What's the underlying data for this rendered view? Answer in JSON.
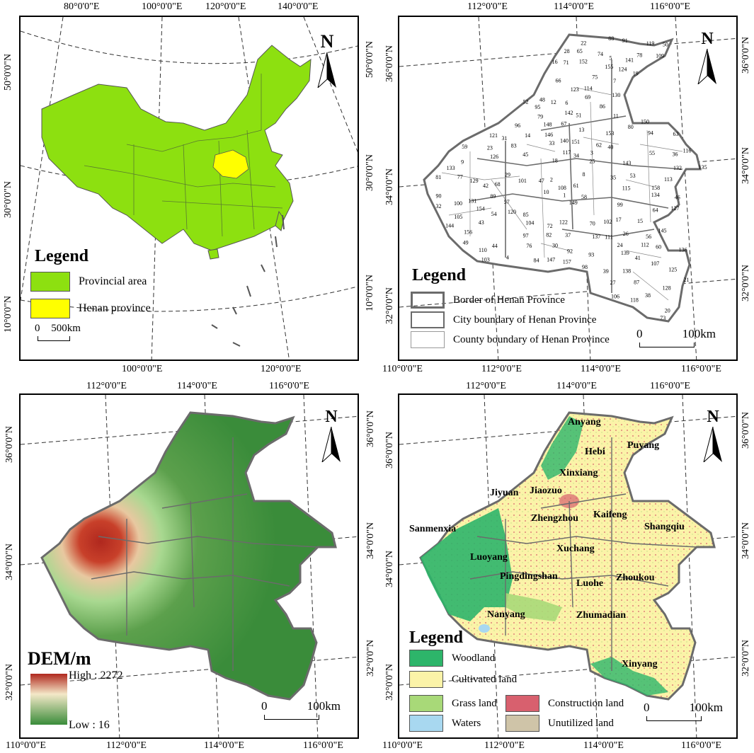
{
  "colors": {
    "province": "#8de010",
    "henan": "#ffff00",
    "woodland": "#2db56a",
    "cultivated": "#fbf3a8",
    "grass": "#a8d978",
    "construction": "#d8606e",
    "waters": "#a8d8f0",
    "unutilized": "#cfc4a8",
    "dem_high": "#b0281e",
    "dem_low": "#3a8c3a",
    "border": "#6b6b6b"
  },
  "panel1": {
    "top_coords": [
      "80°0'0\"E",
      "100°0'0\"E",
      "120°0'0\"E",
      "140°0'0\"E"
    ],
    "bottom_coords": [
      "100°0'0\"E",
      "120°0'0\"E"
    ],
    "left_coords": [
      "50°0'0\"N",
      "30°0'0\"N",
      "10°0'0\"N"
    ],
    "right_coords": [
      "50°0'0\"N",
      "30°0'0\"N",
      "10°0'0\"N"
    ],
    "north": "N",
    "legend": {
      "title": "Legend",
      "items": [
        "Provincial area",
        "Henan province"
      ]
    },
    "scale": {
      "zero": "0",
      "label": "500km"
    }
  },
  "panel2": {
    "top_coords": [
      "112°0'0\"E",
      "114°0'0\"E",
      "116°0'0\"E"
    ],
    "bottom_coords": [
      "110°0'0\"E",
      "112°0'0\"E",
      "114°0'0\"E",
      "116°0'0\"E"
    ],
    "left_coords": [
      "36°0'0\"N",
      "34°0'0\"N",
      "32°0'0\"N"
    ],
    "right_coords": [
      "36°0'0\"N",
      "34°0'0\"N",
      "32°0'0\"N"
    ],
    "north": "N",
    "legend": {
      "title": "Legend",
      "items": [
        "Border of Henan Province",
        "City boundary of Henan Province",
        "County boundary of Henan Province"
      ]
    },
    "scale": {
      "zero": "0",
      "label": "100km"
    },
    "county_numbers": [
      "1",
      "2",
      "3",
      "4",
      "5",
      "6",
      "7",
      "8",
      "9",
      "10",
      "11",
      "12",
      "13",
      "14",
      "15",
      "16",
      "17",
      "18",
      "19",
      "20",
      "21",
      "22",
      "23",
      "24",
      "25",
      "26",
      "27",
      "28",
      "29",
      "30",
      "31",
      "32",
      "33",
      "34",
      "35",
      "36",
      "37",
      "38",
      "39",
      "40",
      "41",
      "42",
      "43",
      "44",
      "45",
      "46",
      "47",
      "48",
      "49",
      "50",
      "51",
      "52",
      "53",
      "54",
      "55",
      "56",
      "57",
      "58",
      "59",
      "60",
      "61",
      "62",
      "63",
      "64",
      "65",
      "66",
      "67",
      "68",
      "69",
      "70",
      "71",
      "72",
      "73",
      "74",
      "75",
      "76",
      "77",
      "78",
      "79",
      "80",
      "81",
      "82",
      "83",
      "84",
      "85",
      "86",
      "87",
      "88",
      "89",
      "90",
      "91",
      "92",
      "93",
      "94",
      "95",
      "96",
      "97",
      "98",
      "99",
      "100",
      "101",
      "102",
      "103",
      "104",
      "105",
      "106",
      "107",
      "108",
      "109",
      "110",
      "111",
      "112",
      "113",
      "114",
      "115",
      "116",
      "117",
      "118",
      "119",
      "120",
      "121",
      "122",
      "123",
      "124",
      "125",
      "126",
      "127",
      "128",
      "129",
      "130",
      "131",
      "132",
      "133",
      "134",
      "135",
      "136",
      "137",
      "138",
      "139",
      "140",
      "141",
      "142",
      "143",
      "144",
      "145",
      "146",
      "147",
      "148",
      "149",
      "150",
      "151",
      "152",
      "153",
      "154",
      "155",
      "156",
      "157",
      "158"
    ]
  },
  "panel3": {
    "top_coords": [
      "112°0'0\"E",
      "114°0'0\"E",
      "116°0'0\"E"
    ],
    "bottom_coords": [
      "110°0'0\"E",
      "112°0'0\"E",
      "114°0'0\"E",
      "116°0'0\"E"
    ],
    "left_coords": [
      "36°0'0\"N",
      "34°0'0\"N",
      "32°0'0\"N"
    ],
    "right_coords": [
      "36°0'0\"N",
      "34°0'0\"N",
      "32°0'0\"N"
    ],
    "north": "N",
    "legend": {
      "title": "DEM/m",
      "high": "High : 2272",
      "low": "Low : 16"
    },
    "scale": {
      "zero": "0",
      "label": "100km"
    }
  },
  "panel4": {
    "top_coords": [
      "112°0'0\"E",
      "114°0'0\"E",
      "116°0'0\"E"
    ],
    "bottom_coords": [
      "110°0'0\"E",
      "112°0'0\"E",
      "114°0'0\"E",
      "116°0'0\"E"
    ],
    "left_coords": [
      "36°0'0\"N",
      "34°0'0\"N",
      "32°0'0\"N"
    ],
    "right_coords": [
      "36°0'0\"N",
      "34°0'0\"N",
      "32°0'0\"N"
    ],
    "north": "N",
    "cities": [
      "Anyang",
      "Puyang",
      "Hebi",
      "Xinxiang",
      "Jiyuan",
      "Jiaozuo",
      "Kaifeng",
      "Zhengzhou",
      "Sanmenxia",
      "Shangqiu",
      "Luoyang",
      "Xuchang",
      "Pingdingshan",
      "Luohe",
      "Zhoukou",
      "Nanyang",
      "Zhumadian",
      "Xinyang"
    ],
    "legend": {
      "title": "Legend",
      "items": [
        "Woodland",
        "Cultivated land",
        "Grass land",
        "Construction land",
        "Waters",
        "Unutilized land"
      ]
    },
    "scale": {
      "zero": "0",
      "label": "100km"
    }
  }
}
